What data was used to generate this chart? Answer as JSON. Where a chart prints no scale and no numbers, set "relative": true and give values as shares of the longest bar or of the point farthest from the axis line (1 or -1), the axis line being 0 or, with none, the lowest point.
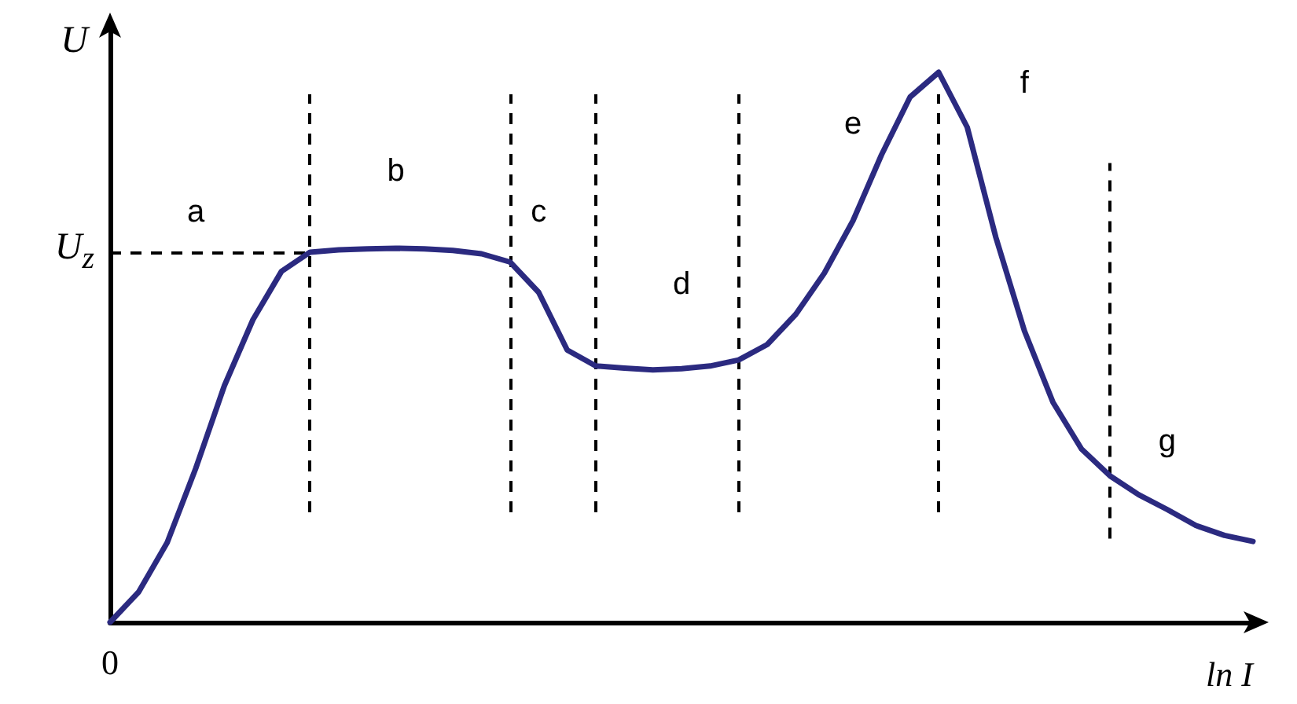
{
  "chart_data": {
    "type": "line",
    "relative": true,
    "xlabel": "ln I",
    "ylabel": "U",
    "categories": [
      null,
      null,
      null,
      null,
      null,
      null,
      null,
      null,
      null,
      null,
      null,
      null,
      null,
      null,
      null,
      null,
      null,
      null,
      null,
      null,
      null,
      null,
      null,
      null,
      null,
      null,
      null,
      null,
      null,
      null,
      null,
      null,
      null,
      null,
      null,
      null,
      null,
      null,
      null,
      null,
      null
    ],
    "annotations": [
      "0",
      "a",
      "b",
      "c",
      "d",
      "e",
      "f",
      "g"
    ],
    "series": [
      {
        "color": "#2b2a80",
        "values": [
          0,
          0.055,
          0.145,
          0.28,
          0.43,
          0.55,
          0.638,
          0.673,
          0.677,
          0.679,
          0.68,
          0.679,
          0.676,
          0.67,
          0.655,
          0.6,
          0.495,
          0.466,
          0.462,
          0.459,
          0.461,
          0.466,
          0.477,
          0.505,
          0.56,
          0.635,
          0.73,
          0.85,
          0.955,
          1.0,
          0.9,
          0.7,
          0.53,
          0.4,
          0.315,
          0.266,
          0.232,
          0.205,
          0.176,
          0.158,
          0.147
        ]
      }
    ],
    "ref_lines": [
      {
        "axis": "y",
        "value": 0.673,
        "label": "U$_{z}$",
        "line_style": "dashed",
        "color": "#000000"
      }
    ],
    "grid": "x",
    "marker": "none",
    "line_style": "solid"
  }
}
